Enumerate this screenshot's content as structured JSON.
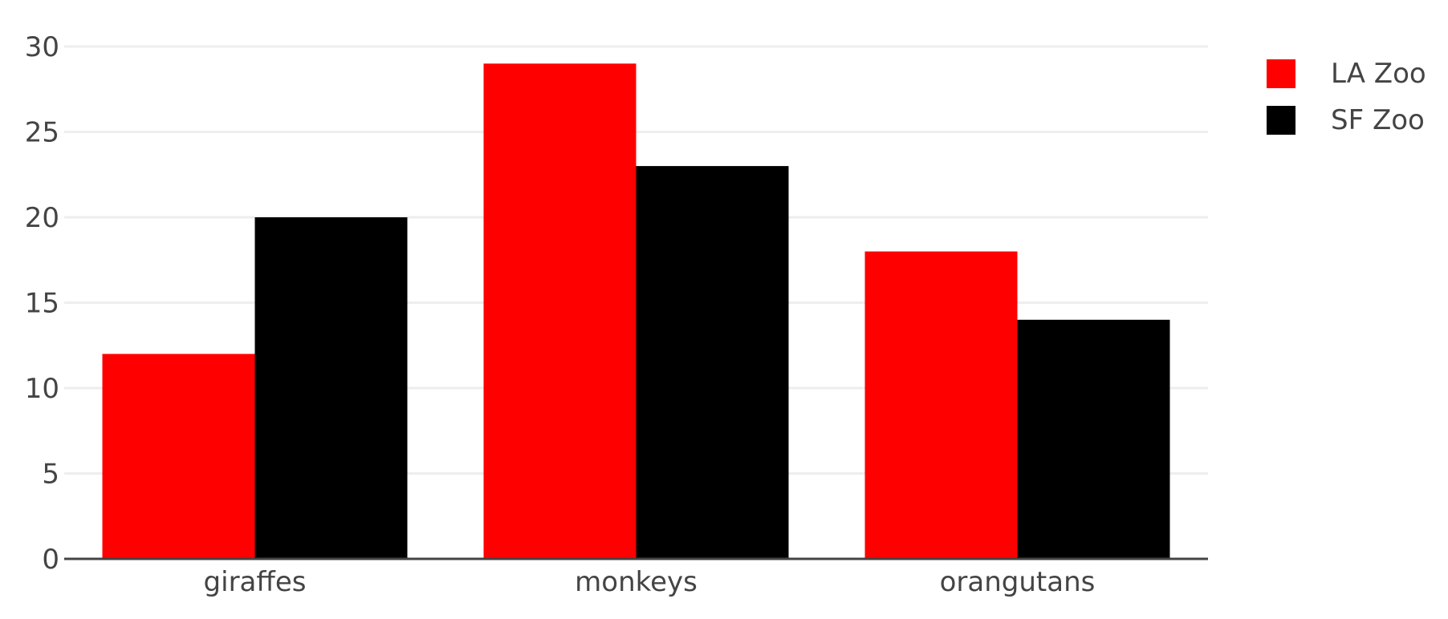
{
  "chart_data": {
    "type": "bar",
    "categories": [
      "giraffes",
      "monkeys",
      "orangutans"
    ],
    "series": [
      {
        "name": "LA Zoo",
        "color": "#ff0000",
        "values": [
          12,
          29,
          18
        ]
      },
      {
        "name": "SF Zoo",
        "color": "#000000",
        "values": [
          20,
          23,
          14
        ]
      }
    ],
    "ylim": [
      0,
      30
    ],
    "yticks": [
      0,
      5,
      10,
      15,
      20,
      25,
      30
    ],
    "grid": true,
    "legend_position": "top-right",
    "title": "",
    "xlabel": "",
    "ylabel": ""
  }
}
